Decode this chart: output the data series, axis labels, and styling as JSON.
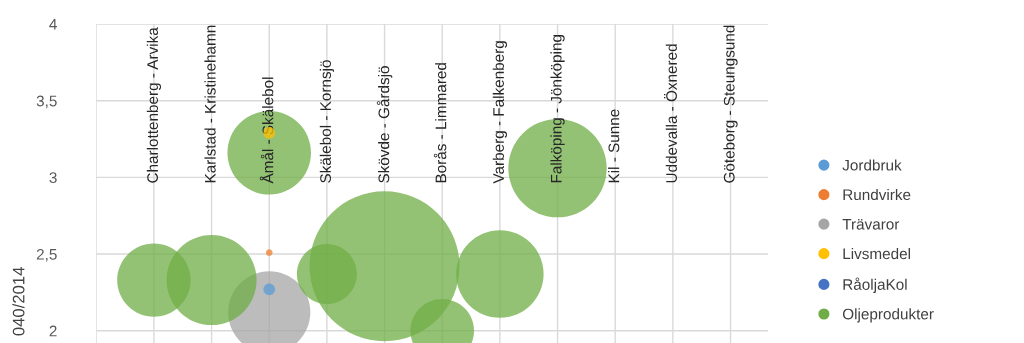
{
  "chart_data": {
    "type": "bubble",
    "ylabel": "040/2014",
    "categories": [
      "Charlottenberg - Arvika",
      "Karlstad - Kristinehamn",
      "Åmål - Skälebol",
      "Skälebol - Kornsjö",
      "Skövde - Gårdsjö",
      "Borås - Limmared",
      "Varberg - Falkenberg",
      "Falköping - Jönköping",
      "Kil - Sunne",
      "Uddevalla - Öxnered",
      "Göteborg - Steungsund"
    ],
    "series": [
      {
        "name": "Jordbruk",
        "color": "#5b9bd5",
        "values": [
          null,
          null,
          2.27,
          null,
          null,
          null,
          null,
          null,
          null,
          null,
          null
        ],
        "sizes": [
          null,
          null,
          0.006,
          null,
          null,
          null,
          null,
          null,
          null,
          null,
          null
        ]
      },
      {
        "name": "Rundvirke",
        "color": "#ed7d31",
        "values": [
          null,
          null,
          2.51,
          null,
          null,
          null,
          null,
          null,
          null,
          null,
          null
        ],
        "sizes": [
          null,
          null,
          0.002,
          null,
          null,
          null,
          null,
          null,
          null,
          null,
          null
        ]
      },
      {
        "name": "Trävaror",
        "color": "#a5a5a5",
        "values": [
          null,
          null,
          2.12,
          null,
          null,
          null,
          null,
          null,
          null,
          null,
          null
        ],
        "sizes": [
          null,
          null,
          0.3,
          null,
          null,
          null,
          null,
          null,
          null,
          null,
          null
        ]
      },
      {
        "name": "Livsmedel",
        "color": "#ffc000",
        "values": [
          null,
          null,
          3.29,
          null,
          null,
          null,
          null,
          null,
          null,
          null,
          null
        ],
        "sizes": [
          null,
          null,
          0.006,
          null,
          null,
          null,
          null,
          null,
          null,
          null,
          null
        ]
      },
      {
        "name": "RåoljaKol",
        "color": "#4472c4",
        "values": [
          null,
          null,
          null,
          null,
          null,
          null,
          null,
          null,
          null,
          null,
          null
        ],
        "sizes": [
          null,
          null,
          null,
          null,
          null,
          null,
          null,
          null,
          null,
          null,
          null
        ]
      },
      {
        "name": "Oljeprodukter",
        "color": "#70ad47",
        "values": [
          2.33,
          2.33,
          3.16,
          2.37,
          2.42,
          2.0,
          2.37,
          3.06,
          null,
          null,
          null
        ],
        "sizes": [
          0.24,
          0.36,
          0.31,
          0.16,
          1,
          0.18,
          0.34,
          0.43,
          null,
          null,
          null
        ]
      }
    ],
    "ylim": [
      1.92,
      4
    ],
    "yticks": [
      {
        "value": 2,
        "label": "2"
      },
      {
        "value": 2.5,
        "label": "2,5"
      },
      {
        "value": 3,
        "label": "3"
      },
      {
        "value": 3.5,
        "label": "3,5"
      },
      {
        "value": 4,
        "label": "4"
      }
    ],
    "grid": true,
    "legend": "right",
    "tick_labels": "y",
    "marker": "circle"
  }
}
